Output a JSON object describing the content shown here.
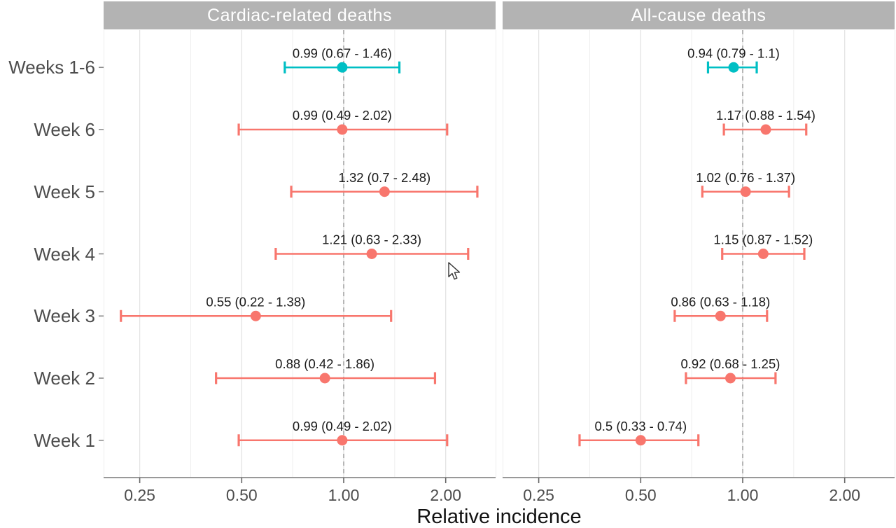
{
  "chart_data": {
    "type": "scatter",
    "subtype": "forest-plot-with-error-bars",
    "title": "",
    "xlabel": "Relative incidence",
    "x_scale": "log",
    "x_ticks": [
      0.25,
      0.5,
      1,
      2
    ],
    "x_tick_labels": [
      "0.25",
      "0.50",
      "1.00",
      "2.00"
    ],
    "x_minor_gridlines": [
      0.3536,
      0.7071,
      1.4142,
      2.8284
    ],
    "x_range": [
      0.195,
      2.8
    ],
    "reference_line": 1.0,
    "grid": true,
    "legend_position": "none",
    "categories": [
      "Weeks 1-6",
      "Week 6",
      "Week 5",
      "Week 4",
      "Week 3",
      "Week 2",
      "Week 1"
    ],
    "colors": {
      "combined_period": "#00BFC4",
      "single_week": "#F8766D",
      "strip_background": "#b3b3b3",
      "strip_text": "#ffffff",
      "grid_major": "#e3e3e3",
      "grid_minor": "#efefef",
      "reference_line_color": "#a6a6a6",
      "axis_line": "#999999",
      "axis_text": "#4d4d4d",
      "label_text": "#1a1a1a"
    },
    "panels": [
      {
        "title": "Cardiac-related deaths",
        "points": [
          {
            "category": "Weeks 1-6",
            "estimate": 0.99,
            "lower": 0.67,
            "upper": 1.46,
            "label": "0.99 (0.67 - 1.46)",
            "series": "combined_period"
          },
          {
            "category": "Week 6",
            "estimate": 0.99,
            "lower": 0.49,
            "upper": 2.02,
            "label": "0.99 (0.49 - 2.02)",
            "series": "single_week"
          },
          {
            "category": "Week 5",
            "estimate": 1.32,
            "lower": 0.7,
            "upper": 2.48,
            "label": "1.32 (0.7 - 2.48)",
            "series": "single_week"
          },
          {
            "category": "Week 4",
            "estimate": 1.21,
            "lower": 0.63,
            "upper": 2.33,
            "label": "1.21 (0.63 - 2.33)",
            "series": "single_week"
          },
          {
            "category": "Week 3",
            "estimate": 0.55,
            "lower": 0.22,
            "upper": 1.38,
            "label": "0.55 (0.22 - 1.38)",
            "series": "single_week"
          },
          {
            "category": "Week 2",
            "estimate": 0.88,
            "lower": 0.42,
            "upper": 1.86,
            "label": "0.88 (0.42 - 1.86)",
            "series": "single_week"
          },
          {
            "category": "Week 1",
            "estimate": 0.99,
            "lower": 0.49,
            "upper": 2.02,
            "label": "0.99 (0.49 - 2.02)",
            "series": "single_week"
          }
        ]
      },
      {
        "title": "All-cause deaths",
        "points": [
          {
            "category": "Weeks 1-6",
            "estimate": 0.94,
            "lower": 0.79,
            "upper": 1.1,
            "label": "0.94 (0.79 - 1.1)",
            "series": "combined_period"
          },
          {
            "category": "Week 6",
            "estimate": 1.17,
            "lower": 0.88,
            "upper": 1.54,
            "label": "1.17 (0.88 - 1.54)",
            "series": "single_week"
          },
          {
            "category": "Week 5",
            "estimate": 1.02,
            "lower": 0.76,
            "upper": 1.37,
            "label": "1.02 (0.76 - 1.37)",
            "series": "single_week"
          },
          {
            "category": "Week 4",
            "estimate": 1.15,
            "lower": 0.87,
            "upper": 1.52,
            "label": "1.15 (0.87 - 1.52)",
            "series": "single_week"
          },
          {
            "category": "Week 3",
            "estimate": 0.86,
            "lower": 0.63,
            "upper": 1.18,
            "label": "0.86 (0.63 - 1.18)",
            "series": "single_week"
          },
          {
            "category": "Week 2",
            "estimate": 0.92,
            "lower": 0.68,
            "upper": 1.25,
            "label": "0.92 (0.68 - 1.25)",
            "series": "single_week"
          },
          {
            "category": "Week 1",
            "estimate": 0.5,
            "lower": 0.33,
            "upper": 0.74,
            "label": "0.5 (0.33 - 0.74)",
            "series": "single_week"
          }
        ]
      }
    ]
  },
  "cursor": {
    "visible": true
  }
}
